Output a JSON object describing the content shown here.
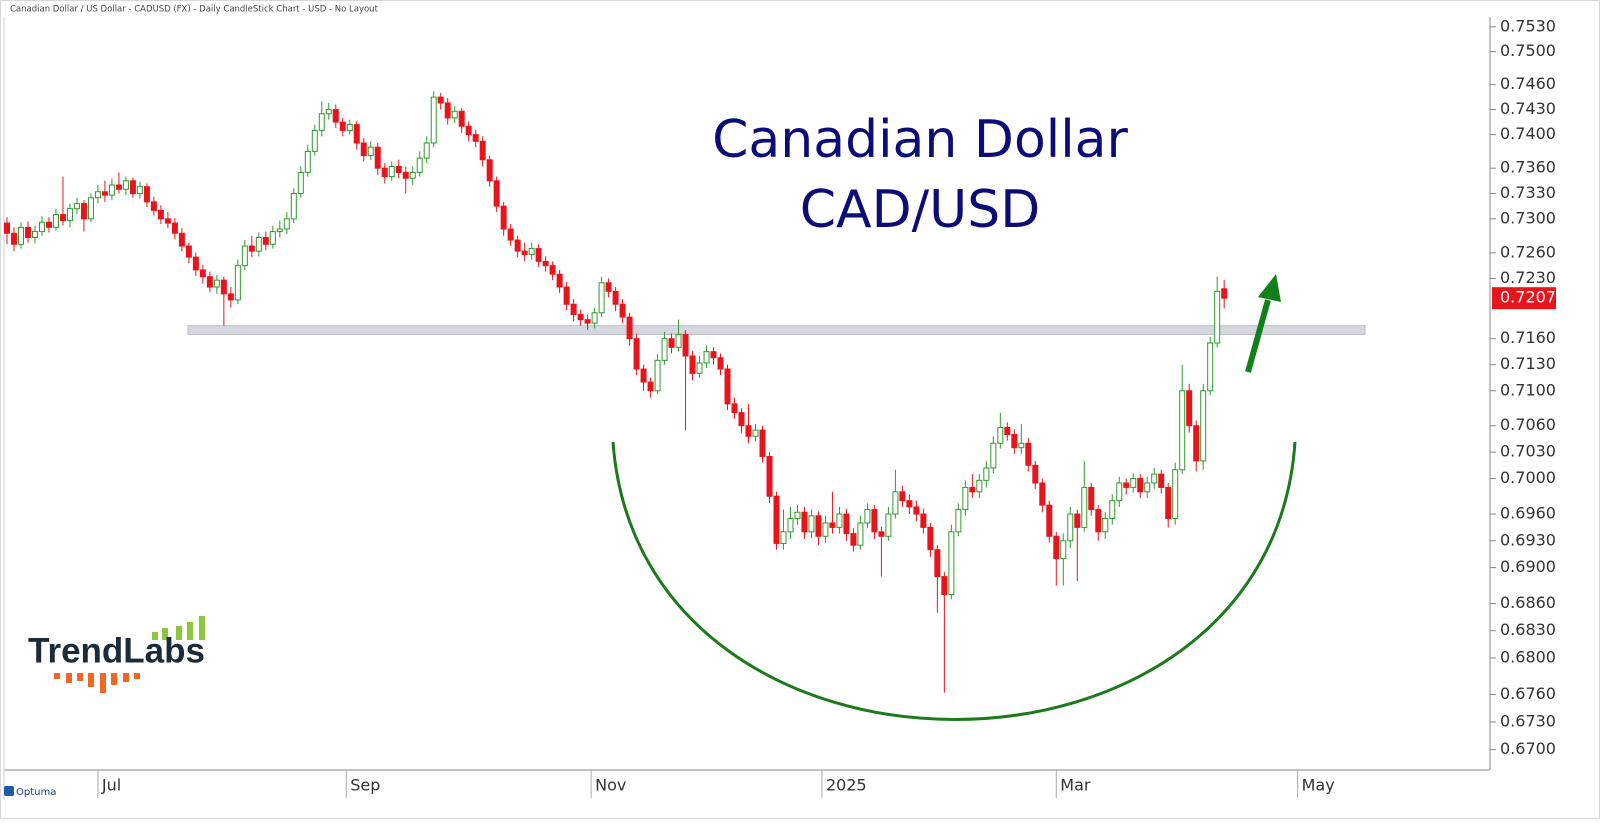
{
  "chart_data": {
    "type": "candlestick",
    "source": "Canadian Dollar / US Dollar - CADUSD (FX) - Daily CandleStick Chart - USD - No Layout",
    "title": "Canadian Dollar",
    "subtitle": "CAD/USD",
    "log_scale": true,
    "up_color": "#2e9a2e",
    "down_color": "#e8141c",
    "title_color": "#0c0c78",
    "ylim": [
      0.6678,
      0.7542
    ],
    "yticks": [
      {
        "value": 0.753,
        "label": "0.7530"
      },
      {
        "value": 0.75,
        "label": "0.7500"
      },
      {
        "value": 0.746,
        "label": "0.7460"
      },
      {
        "value": 0.743,
        "label": "0.7430"
      },
      {
        "value": 0.74,
        "label": "0.7400"
      },
      {
        "value": 0.736,
        "label": "0.7360"
      },
      {
        "value": 0.733,
        "label": "0.7330"
      },
      {
        "value": 0.73,
        "label": "0.7300"
      },
      {
        "value": 0.726,
        "label": "0.7260"
      },
      {
        "value": 0.723,
        "label": "0.7230"
      },
      {
        "value": 0.716,
        "label": "0.7160"
      },
      {
        "value": 0.713,
        "label": "0.7130"
      },
      {
        "value": 0.71,
        "label": "0.7100"
      },
      {
        "value": 0.706,
        "label": "0.7060"
      },
      {
        "value": 0.703,
        "label": "0.7030"
      },
      {
        "value": 0.7,
        "label": "0.7000"
      },
      {
        "value": 0.696,
        "label": "0.6960"
      },
      {
        "value": 0.693,
        "label": "0.6930"
      },
      {
        "value": 0.69,
        "label": "0.6900"
      },
      {
        "value": 0.686,
        "label": "0.6860"
      },
      {
        "value": 0.683,
        "label": "0.6830"
      },
      {
        "value": 0.68,
        "label": "0.6800"
      },
      {
        "value": 0.676,
        "label": "0.6760"
      },
      {
        "value": 0.673,
        "label": "0.6730"
      },
      {
        "value": 0.67,
        "label": "0.6700"
      }
    ],
    "xlim": [
      -1,
      212
    ],
    "xticks": [
      {
        "value": 13,
        "label": "Jul"
      },
      {
        "value": 48.5,
        "label": "Sep"
      },
      {
        "value": 83.5,
        "label": "Nov"
      },
      {
        "value": 116.5,
        "label": "2025"
      },
      {
        "value": 150,
        "label": "Mar"
      },
      {
        "value": 184.5,
        "label": "May"
      }
    ],
    "last_price": 0.7207,
    "support_band": [
      0.7175,
      0.7165
    ],
    "open": [
      0.7295,
      0.7283,
      0.727,
      0.729,
      0.7278,
      0.7285,
      0.7296,
      0.729,
      0.7305,
      0.7298,
      0.7312,
      0.7318,
      0.73,
      0.7325,
      0.7332,
      0.7328,
      0.734,
      0.7335,
      0.7345,
      0.733,
      0.7338,
      0.732,
      0.731,
      0.73,
      0.7295,
      0.7283,
      0.7268,
      0.7255,
      0.724,
      0.7232,
      0.722,
      0.7228,
      0.7212,
      0.7205,
      0.7245,
      0.7268,
      0.7262,
      0.7278,
      0.727,
      0.7285,
      0.7288,
      0.73,
      0.733,
      0.7355,
      0.738,
      0.7405,
      0.7425,
      0.743,
      0.7415,
      0.7405,
      0.7412,
      0.739,
      0.7375,
      0.7385,
      0.736,
      0.735,
      0.7362,
      0.7355,
      0.7348,
      0.7355,
      0.7372,
      0.739,
      0.7445,
      0.7438,
      0.742,
      0.7428,
      0.741,
      0.74,
      0.7392,
      0.737,
      0.7345,
      0.7315,
      0.7288,
      0.7275,
      0.7262,
      0.7258,
      0.7265,
      0.725,
      0.7245,
      0.7235,
      0.722,
      0.72,
      0.7188,
      0.7182,
      0.7178,
      0.719,
      0.7225,
      0.7215,
      0.72,
      0.7185,
      0.716,
      0.7125,
      0.711,
      0.71,
      0.7135,
      0.716,
      0.715,
      0.7165,
      0.714,
      0.712,
      0.7132,
      0.7145,
      0.7138,
      0.7125,
      0.7085,
      0.7075,
      0.706,
      0.7048,
      0.7055,
      0.7025,
      0.698,
      0.6927,
      0.694,
      0.6955,
      0.6962,
      0.694,
      0.6958,
      0.6935,
      0.695,
      0.6945,
      0.696,
      0.6938,
      0.6925,
      0.695,
      0.6965,
      0.694,
      0.6935,
      0.696,
      0.6985,
      0.6975,
      0.6968,
      0.696,
      0.6945,
      0.692,
      0.689,
      0.687,
      0.694,
      0.6965,
      0.699,
      0.6985,
      0.6998,
      0.7012,
      0.704,
      0.7058,
      0.705,
      0.7035,
      0.704,
      0.7015,
      0.6995,
      0.697,
      0.6935,
      0.691,
      0.693,
      0.696,
      0.6945,
      0.699,
      0.6965,
      0.694,
      0.6955,
      0.6975,
      0.6995,
      0.699,
      0.7,
      0.6985,
      0.6995,
      0.7005,
      0.699,
      0.6955,
      0.701,
      0.71,
      0.706,
      0.702,
      0.71,
      0.7155,
      0.7218
    ],
    "high": [
      0.7302,
      0.729,
      0.7296,
      0.7297,
      0.7292,
      0.7303,
      0.7302,
      0.7312,
      0.735,
      0.7318,
      0.7325,
      0.7322,
      0.733,
      0.734,
      0.7345,
      0.7348,
      0.7355,
      0.735,
      0.7349,
      0.7344,
      0.7342,
      0.7326,
      0.7316,
      0.7308,
      0.7301,
      0.7289,
      0.7272,
      0.726,
      0.7246,
      0.7238,
      0.7234,
      0.7232,
      0.722,
      0.7252,
      0.7275,
      0.728,
      0.7284,
      0.7285,
      0.7292,
      0.7298,
      0.7308,
      0.7336,
      0.7362,
      0.7388,
      0.7412,
      0.744,
      0.7438,
      0.7436,
      0.742,
      0.7418,
      0.7416,
      0.7396,
      0.7392,
      0.739,
      0.7366,
      0.7368,
      0.737,
      0.7362,
      0.7362,
      0.738,
      0.7398,
      0.7452,
      0.745,
      0.7444,
      0.7434,
      0.7432,
      0.7416,
      0.7406,
      0.7398,
      0.7375,
      0.735,
      0.732,
      0.7294,
      0.728,
      0.7272,
      0.7272,
      0.727,
      0.7256,
      0.725,
      0.724,
      0.7226,
      0.7206,
      0.7194,
      0.7188,
      0.7196,
      0.7232,
      0.723,
      0.722,
      0.7206,
      0.719,
      0.7166,
      0.713,
      0.7115,
      0.7142,
      0.7168,
      0.7166,
      0.7182,
      0.717,
      0.7146,
      0.714,
      0.7152,
      0.715,
      0.7143,
      0.713,
      0.7092,
      0.708,
      0.7085,
      0.7062,
      0.706,
      0.703,
      0.6985,
      0.6965,
      0.6968,
      0.697,
      0.6968,
      0.6965,
      0.6963,
      0.6958,
      0.6985,
      0.6968,
      0.6966,
      0.6944,
      0.6958,
      0.6972,
      0.697,
      0.6946,
      0.6968,
      0.701,
      0.6992,
      0.6982,
      0.6975,
      0.6966,
      0.695,
      0.6925,
      0.6895,
      0.6948,
      0.6972,
      0.6998,
      0.7005,
      0.7005,
      0.702,
      0.7048,
      0.7075,
      0.7064,
      0.7056,
      0.7062,
      0.7046,
      0.702,
      0.7,
      0.6975,
      0.694,
      0.6938,
      0.6968,
      0.6965,
      0.702,
      0.6995,
      0.697,
      0.6962,
      0.6982,
      0.7002,
      0.7,
      0.7006,
      0.7005,
      0.7002,
      0.7012,
      0.701,
      0.6995,
      0.7018,
      0.713,
      0.7108,
      0.7066,
      0.7108,
      0.7162,
      0.7232,
      0.7228
    ],
    "low": [
      0.727,
      0.7262,
      0.7265,
      0.7272,
      0.7271,
      0.728,
      0.7284,
      0.7286,
      0.7292,
      0.729,
      0.7305,
      0.7285,
      0.7296,
      0.7318,
      0.732,
      0.7322,
      0.733,
      0.7328,
      0.7325,
      0.7324,
      0.7314,
      0.7304,
      0.7294,
      0.7289,
      0.7276,
      0.7262,
      0.7248,
      0.7233,
      0.7224,
      0.7214,
      0.7212,
      0.7175,
      0.7196,
      0.72,
      0.724,
      0.7255,
      0.7256,
      0.7263,
      0.7265,
      0.7278,
      0.7282,
      0.7295,
      0.7325,
      0.735,
      0.7375,
      0.7398,
      0.7418,
      0.7408,
      0.7398,
      0.74,
      0.7382,
      0.7368,
      0.737,
      0.7352,
      0.7342,
      0.7345,
      0.7348,
      0.733,
      0.734,
      0.735,
      0.7366,
      0.7385,
      0.743,
      0.7412,
      0.7414,
      0.7402,
      0.7392,
      0.7385,
      0.7362,
      0.7338,
      0.7308,
      0.728,
      0.7268,
      0.7255,
      0.725,
      0.7252,
      0.7243,
      0.7238,
      0.7228,
      0.7213,
      0.7193,
      0.718,
      0.7175,
      0.717,
      0.7172,
      0.7185,
      0.7208,
      0.7192,
      0.7178,
      0.7152,
      0.7118,
      0.71,
      0.7092,
      0.7096,
      0.713,
      0.7143,
      0.7145,
      0.7055,
      0.7112,
      0.7115,
      0.7126,
      0.713,
      0.7118,
      0.7078,
      0.7068,
      0.7052,
      0.704,
      0.7042,
      0.7018,
      0.6972,
      0.692,
      0.692,
      0.6932,
      0.6948,
      0.6932,
      0.6933,
      0.6925,
      0.6928,
      0.6938,
      0.6938,
      0.693,
      0.6918,
      0.692,
      0.6944,
      0.6932,
      0.689,
      0.693,
      0.6955,
      0.6968,
      0.696,
      0.6952,
      0.6938,
      0.6912,
      0.685,
      0.6762,
      0.6865,
      0.6935,
      0.6958,
      0.6978,
      0.6978,
      0.699,
      0.7006,
      0.7034,
      0.7043,
      0.7028,
      0.7028,
      0.7008,
      0.6988,
      0.6962,
      0.6928,
      0.688,
      0.688,
      0.6922,
      0.6885,
      0.694,
      0.6958,
      0.693,
      0.6932,
      0.6948,
      0.6968,
      0.6982,
      0.6984,
      0.6978,
      0.6978,
      0.6988,
      0.6983,
      0.6945,
      0.6948,
      0.7005,
      0.7052,
      0.7008,
      0.701,
      0.7095,
      0.715,
      0.7195
    ],
    "close": [
      0.7283,
      0.727,
      0.729,
      0.7278,
      0.7285,
      0.7296,
      0.729,
      0.7305,
      0.7298,
      0.7312,
      0.7318,
      0.73,
      0.7325,
      0.7332,
      0.7328,
      0.734,
      0.7335,
      0.7345,
      0.733,
      0.7338,
      0.732,
      0.731,
      0.73,
      0.7295,
      0.7283,
      0.7268,
      0.7255,
      0.724,
      0.7232,
      0.722,
      0.7228,
      0.7212,
      0.7205,
      0.7245,
      0.7268,
      0.7262,
      0.7278,
      0.727,
      0.7285,
      0.7288,
      0.73,
      0.733,
      0.7355,
      0.738,
      0.7405,
      0.7425,
      0.743,
      0.7415,
      0.7405,
      0.7412,
      0.739,
      0.7375,
      0.7385,
      0.736,
      0.735,
      0.7362,
      0.7355,
      0.7348,
      0.7355,
      0.7372,
      0.739,
      0.7445,
      0.7438,
      0.742,
      0.7428,
      0.741,
      0.74,
      0.7392,
      0.737,
      0.7345,
      0.7315,
      0.7288,
      0.7275,
      0.7262,
      0.7258,
      0.7265,
      0.725,
      0.7245,
      0.7235,
      0.722,
      0.72,
      0.7188,
      0.7182,
      0.7178,
      0.719,
      0.7225,
      0.7215,
      0.72,
      0.7185,
      0.716,
      0.7125,
      0.711,
      0.71,
      0.7135,
      0.716,
      0.715,
      0.7165,
      0.714,
      0.712,
      0.7132,
      0.7145,
      0.7138,
      0.7125,
      0.7085,
      0.7075,
      0.706,
      0.7048,
      0.7055,
      0.7025,
      0.698,
      0.6927,
      0.694,
      0.6955,
      0.6962,
      0.694,
      0.6958,
      0.6935,
      0.695,
      0.6945,
      0.696,
      0.6938,
      0.6925,
      0.695,
      0.6965,
      0.694,
      0.6935,
      0.696,
      0.6985,
      0.6975,
      0.6968,
      0.696,
      0.6945,
      0.692,
      0.689,
      0.687,
      0.694,
      0.6965,
      0.699,
      0.6985,
      0.6998,
      0.7012,
      0.704,
      0.7058,
      0.705,
      0.7035,
      0.704,
      0.7015,
      0.6995,
      0.697,
      0.6935,
      0.691,
      0.693,
      0.696,
      0.6945,
      0.699,
      0.6965,
      0.694,
      0.6955,
      0.6975,
      0.6995,
      0.699,
      0.7,
      0.6985,
      0.6995,
      0.7005,
      0.699,
      0.6955,
      0.701,
      0.71,
      0.706,
      0.702,
      0.71,
      0.7155,
      0.7215,
      0.7207
    ]
  },
  "branding": {
    "logo": "TrendLabs",
    "platform": "Optuma"
  }
}
